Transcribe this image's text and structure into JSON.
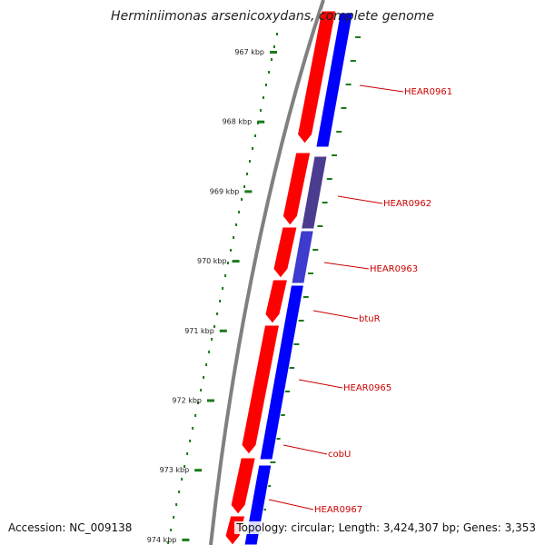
{
  "title": "Herminiimonas arsenicoxydans, complete genome",
  "footer": {
    "accession": "Accession: NC_009138",
    "summary": "Topology: circular; Length: 3,424,307 bp; Genes: 3,353"
  },
  "colors": {
    "forward_strand": "#ff0000",
    "reverse_strand": "#0000ff",
    "tick": "#1a7a1a",
    "label": "#cc0000",
    "backbone": "#808080"
  },
  "scale": {
    "unit": "kbp",
    "ticks": [
      {
        "label": "967 kbp"
      },
      {
        "label": "968 kbp"
      },
      {
        "label": "969 kbp"
      },
      {
        "label": "970 kbp"
      },
      {
        "label": "971 kbp"
      },
      {
        "label": "972 kbp"
      },
      {
        "label": "973 kbp"
      },
      {
        "label": "974 kbp"
      }
    ]
  },
  "genes": [
    {
      "name": "HEAR0961"
    },
    {
      "name": "HEAR0962"
    },
    {
      "name": "HEAR0963"
    },
    {
      "name": "btuR"
    },
    {
      "name": "HEAR0965"
    },
    {
      "name": "cobU"
    },
    {
      "name": "HEAR0967"
    }
  ]
}
